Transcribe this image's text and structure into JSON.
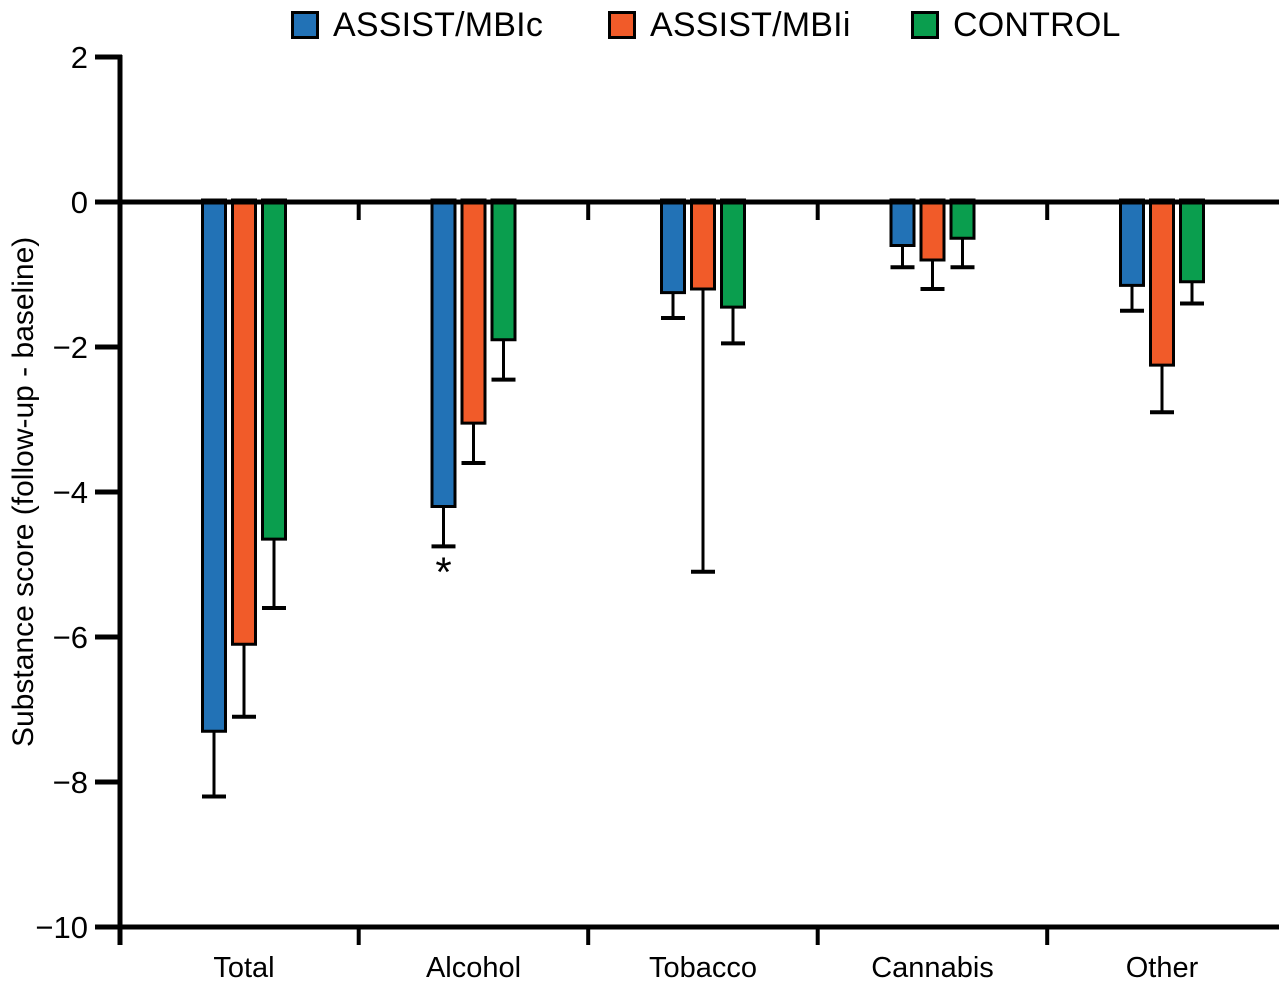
{
  "figure": {
    "background": "#ffffff",
    "axis_color": "#000000"
  },
  "legend": {
    "position": "top",
    "items": [
      {
        "label": "ASSIST/MBIc",
        "color": "#2272B6"
      },
      {
        "label": "ASSIST/MBIi",
        "color": "#F15B29"
      },
      {
        "label": "CONTROL",
        "color": "#0A9E4E"
      }
    ]
  },
  "chart_data": {
    "type": "bar",
    "categories": [
      "Total",
      "Alcohol",
      "Tobacco",
      "Cannabis",
      "Other"
    ],
    "series": [
      {
        "name": "ASSIST/MBIc",
        "color": "#2272B6",
        "values": [
          -7.3,
          -4.2,
          -1.25,
          -0.6,
          -1.15
        ],
        "error_to": [
          -8.2,
          -4.75,
          -1.6,
          -0.9,
          -1.5
        ]
      },
      {
        "name": "ASSIST/MBIi",
        "color": "#F15B29",
        "values": [
          -6.1,
          -3.05,
          -1.2,
          -0.8,
          -2.25
        ],
        "error_to": [
          -7.1,
          -3.6,
          -5.1,
          -1.2,
          -2.9
        ]
      },
      {
        "name": "CONTROL",
        "color": "#0A9E4E",
        "values": [
          -4.65,
          -1.9,
          -1.45,
          -0.5,
          -1.1
        ],
        "error_to": [
          -5.6,
          -2.45,
          -1.95,
          -0.9,
          -1.4
        ]
      }
    ],
    "title": "",
    "xlabel": "",
    "ylabel": "Substance score (follow-up - baseline)",
    "ylim": [
      -10,
      2
    ],
    "yticks": [
      2,
      0,
      -2,
      -4,
      -6,
      -8,
      -10
    ],
    "ytick_labels": [
      "2",
      "0",
      "−2",
      "−4",
      "−6",
      "−8",
      "−10"
    ],
    "grid": false,
    "error_bars": "lower_only",
    "annotations": [
      {
        "text": "*",
        "category": "Alcohol",
        "series": "ASSIST/MBIc"
      }
    ]
  }
}
